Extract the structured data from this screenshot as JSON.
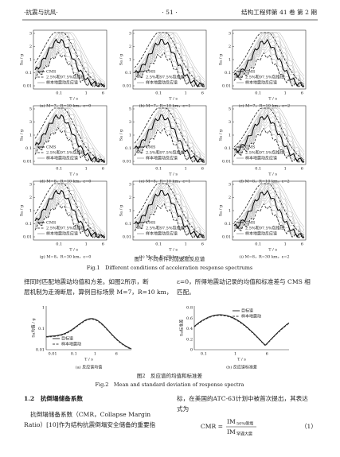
{
  "header": {
    "left": "·抗震与抗风·",
    "center": "· 51 ·",
    "right": "结构工程师第 41 卷 第 2 期"
  },
  "figure1": {
    "y_label": "Sa / g",
    "x_label": "T / s",
    "x_ticks": [
      "0.1",
      "1",
      "6"
    ],
    "legend": [
      "CMS",
      "2.5%和97.5%包络线",
      "样本地震动反应谱"
    ],
    "row_y_ticks": [
      [
        "3",
        "2",
        "1",
        "0.1",
        "0.01"
      ],
      [
        "5",
        "3",
        "1",
        "0.1",
        "0.01"
      ],
      [
        "3",
        "2",
        "1",
        "0.1",
        "0.01"
      ]
    ],
    "panels": [
      "(a) M=7，R=10 km，ε=0",
      "(b) M=7，R=10 km，ε=1",
      "(c) M=7，R=10 km，ε=2",
      "(d) M=8，R=10 km，ε=0",
      "(e) M=8，R=10 km，ε=1",
      "(f) M=8，R=10 km，ε=2",
      "(g) M=8，R=30 km，ε=0",
      "(h) M=8，R=30 km，ε=1",
      "(i) M=8，R=30 km，ε=2"
    ],
    "caption_cn": "图1　不同条件的加速度反应谱",
    "caption_en": "Fig.1　Different conditions of acceleration response spectrums"
  },
  "body1": {
    "left": [
      "择同时匹配地震动均值和方差。如图2所示，断",
      "层机制为走滑断层，算例目标场景 M=7，R=10 km，"
    ],
    "right": [
      "ε=0，所得地震动记录的均值和标准差与 CMS 相",
      "匹配。"
    ]
  },
  "figure2": {
    "x_label": "T / s",
    "legend": [
      "目标谱",
      "样本地震动"
    ],
    "panels": [
      {
        "y_label": "Sa均值 / g",
        "y_ticks": [
          "1",
          "0.1",
          "0.01"
        ],
        "x_ticks": [
          "0.01",
          "0.1",
          "1",
          "6"
        ],
        "caption": "(a) 反应谱均值"
      },
      {
        "y_label": "Sa标准差",
        "y_ticks": [
          "0.8",
          "0.6",
          "0.4",
          "0.2",
          "0"
        ],
        "x_ticks": [
          "0.1",
          "1",
          "6"
        ],
        "caption": "(b) 反应谱标准差"
      }
    ],
    "caption_cn": "图2　反应谱的均值和标准差",
    "caption_en": "Fig.2　Mean and standard deviation of response spectra"
  },
  "section": {
    "title": "1.2　抗倒塌储备系数",
    "left": [
      "抗倒塌储备系数（CMR，Collapse Margin",
      "Ratio）[10]作为结构抗震倒塌安全储备的重要指"
    ],
    "right": [
      "标，在美国的ATC-63计划中被首次提出，其表达",
      "式为"
    ],
    "equation": {
      "lhs": "CMR =",
      "num": "IM",
      "num_sub": "50%倒塌",
      "den": "IM",
      "den_sub": "罕遇大震",
      "number": "（1）"
    }
  }
}
